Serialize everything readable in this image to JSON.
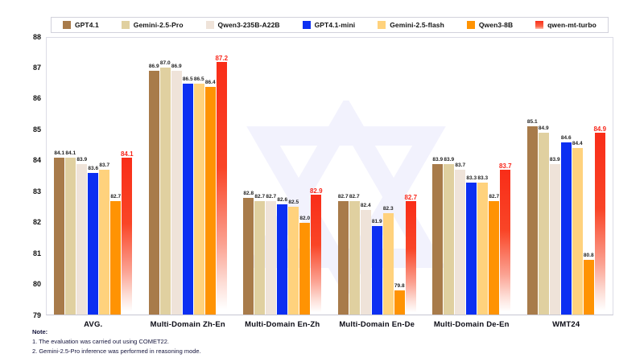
{
  "chart_data": {
    "type": "bar",
    "title": "",
    "xlabel": "",
    "ylabel": "",
    "ylim": [
      79,
      88
    ],
    "yticks": [
      79,
      80,
      81,
      82,
      83,
      84,
      85,
      86,
      87,
      88
    ],
    "grid": false,
    "legend_position": "top",
    "categories": [
      "AVG.",
      "Multi-Domain Zh-En",
      "Multi-Domain En-Zh",
      "Multi-Domain En-De",
      "Multi-Domain De-En",
      "WMT24"
    ],
    "series": [
      {
        "name": "GPT4.1",
        "color": "#a87b4a",
        "highlight": false,
        "values": [
          84.1,
          86.9,
          82.8,
          82.7,
          83.9,
          85.1
        ]
      },
      {
        "name": "Gemini-2.5-Pro",
        "color": "#e0d0a0",
        "highlight": false,
        "values": [
          84.1,
          87.0,
          82.7,
          82.7,
          83.9,
          84.9
        ]
      },
      {
        "name": "Qwen3-235B-A22B",
        "color": "#efe3d9",
        "highlight": false,
        "values": [
          83.9,
          86.9,
          82.7,
          82.4,
          83.7,
          83.9
        ]
      },
      {
        "name": "GPT4.1-mini",
        "color": "#0c2ff2",
        "highlight": false,
        "values": [
          83.6,
          86.5,
          82.6,
          81.9,
          83.3,
          84.6
        ]
      },
      {
        "name": "Gemini-2.5-flash",
        "color": "#ffd27d",
        "highlight": false,
        "values": [
          83.7,
          86.5,
          82.5,
          82.3,
          83.3,
          84.4
        ]
      },
      {
        "name": "Qwen3-8B",
        "color": "#ff9303",
        "highlight": false,
        "values": [
          82.7,
          86.4,
          82.0,
          79.8,
          82.7,
          80.8
        ]
      },
      {
        "name": "qwen-mt-turbo",
        "color": "#f92d18",
        "highlight": true,
        "values": [
          84.1,
          87.2,
          82.9,
          82.7,
          83.7,
          84.9
        ]
      }
    ]
  },
  "watermark": {
    "name": "qwen-logo-watermark",
    "color": "#8b85f0"
  },
  "notes": {
    "title": "Note:",
    "items": [
      "1. The evaluation was carried out using COMET22.",
      "2. Gemini-2.5-Pro inference was performed in reasoning mode."
    ]
  }
}
